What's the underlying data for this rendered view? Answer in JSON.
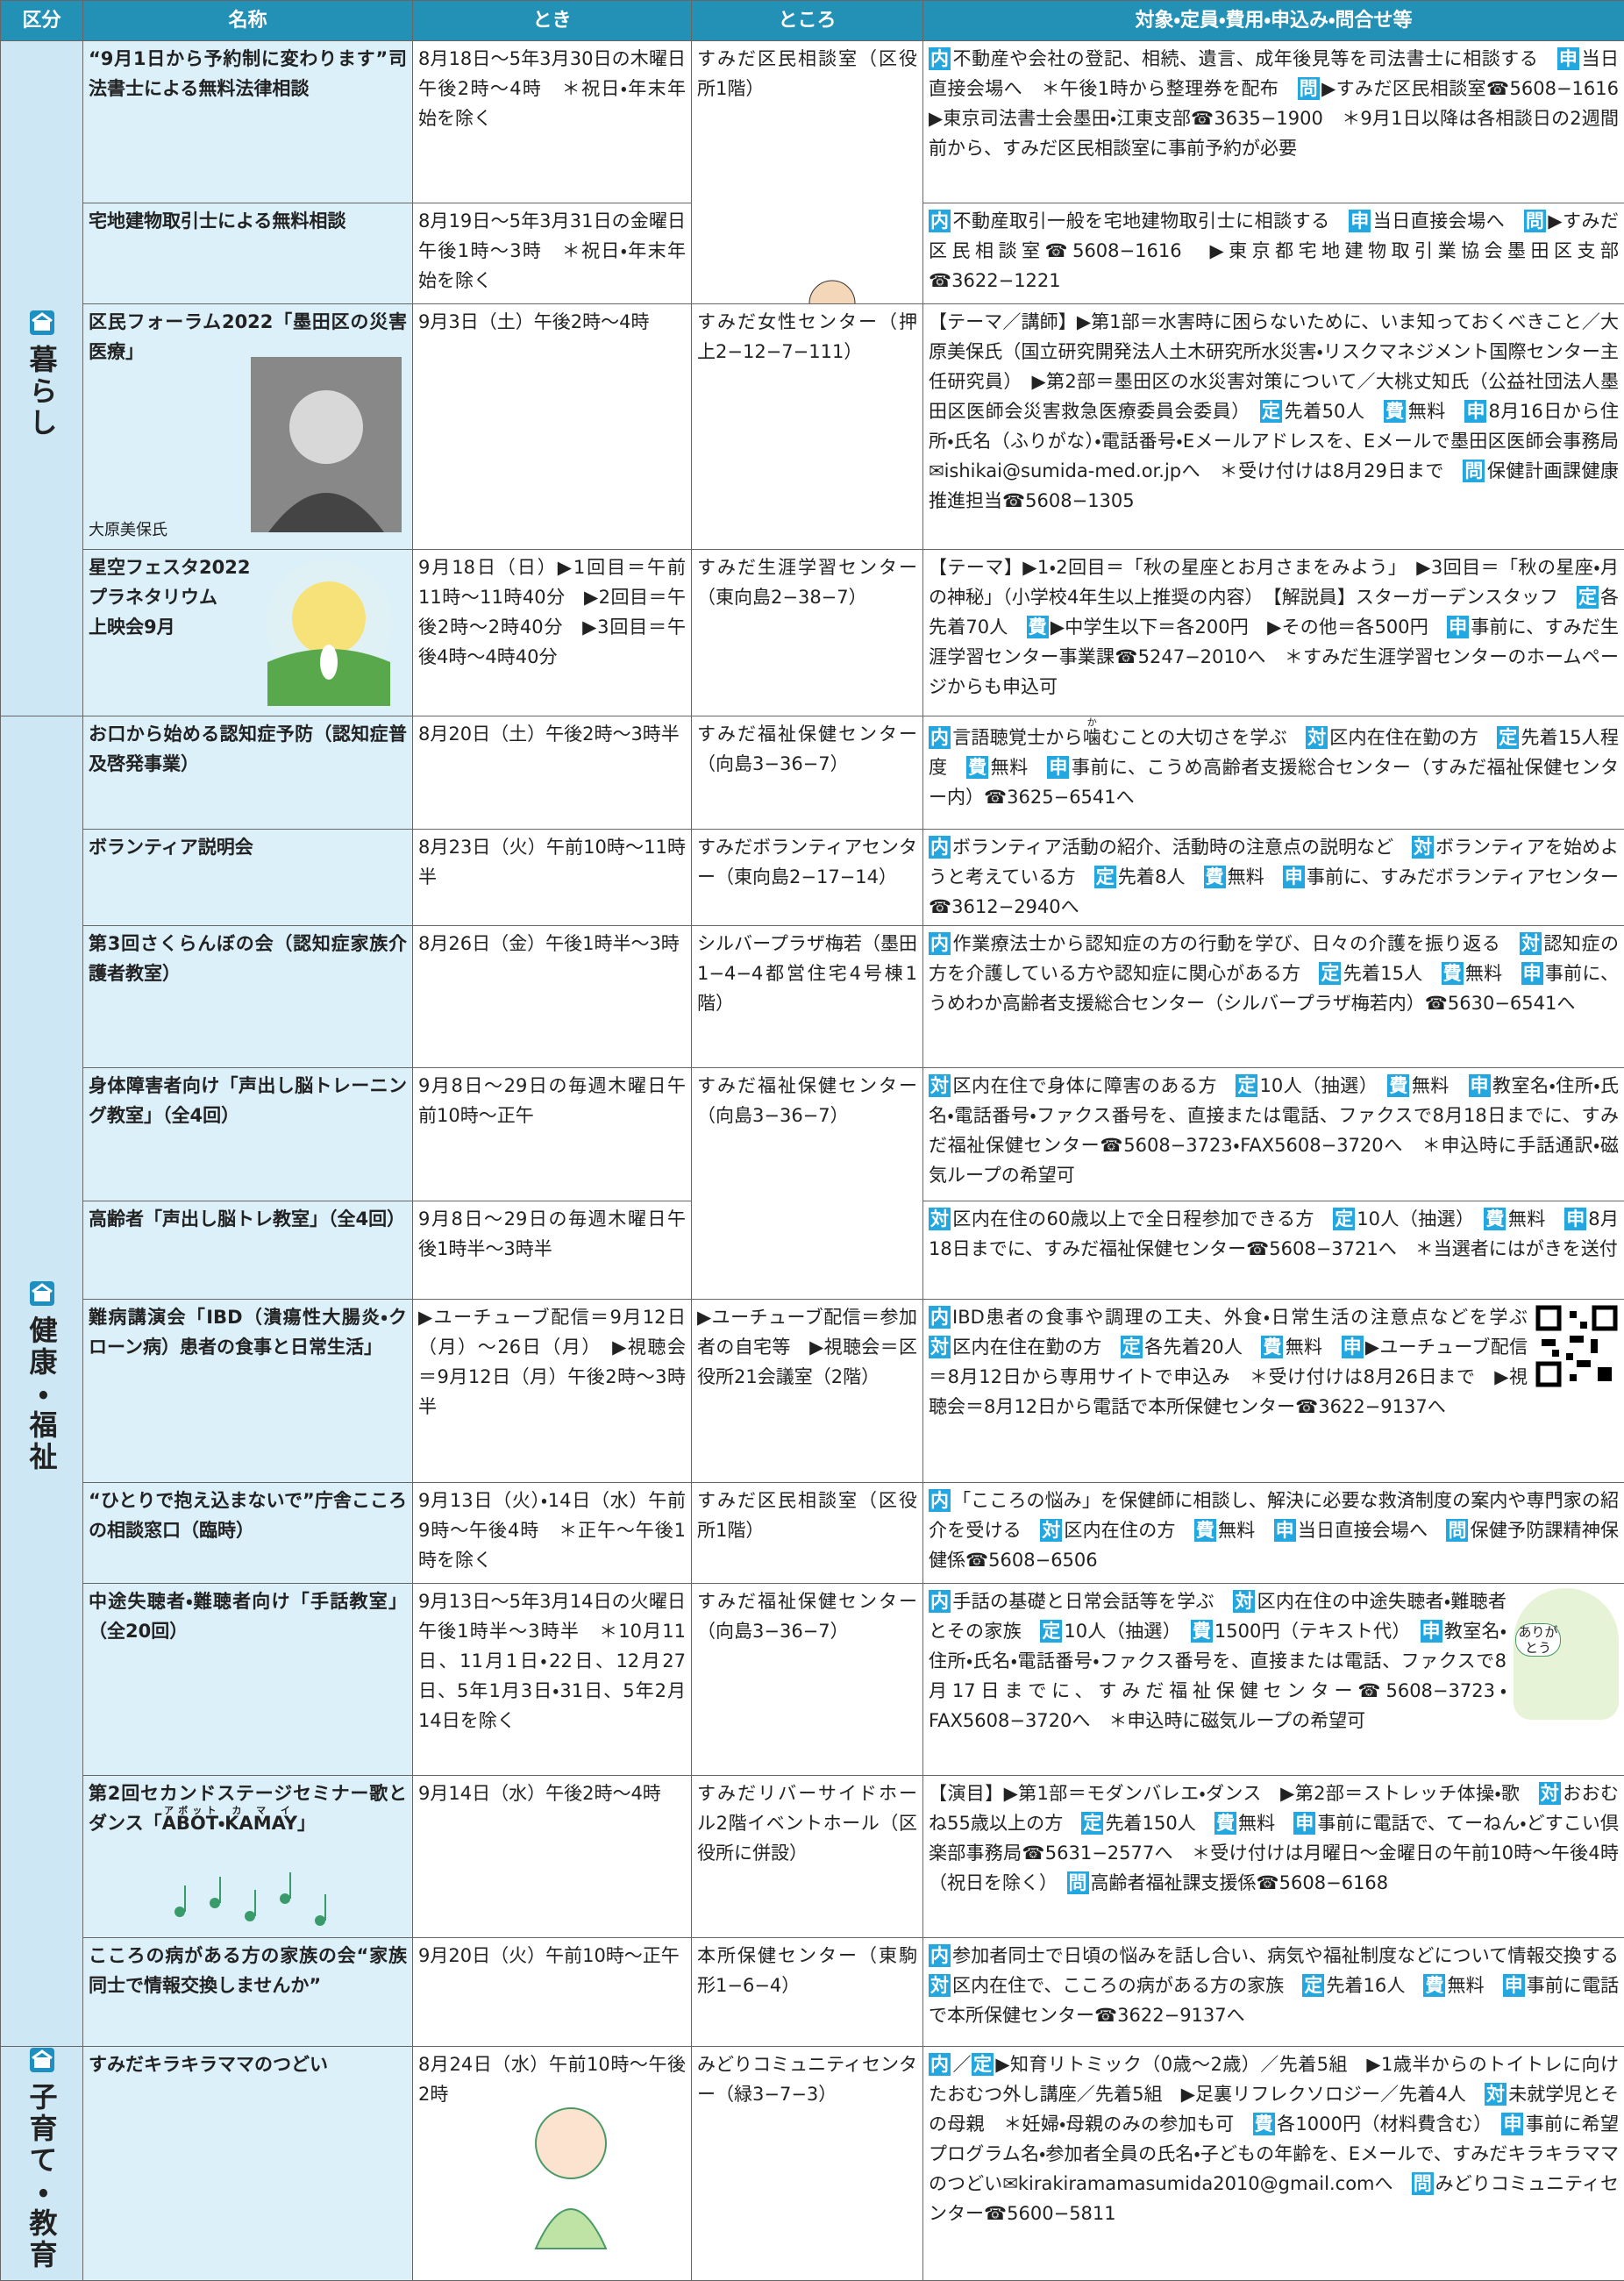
{
  "header": [
    "区分",
    "名称",
    "とき",
    "ところ",
    "対象・定員・費用・申込み・問合せ等"
  ],
  "categories": [
    {
      "label": "暮らし",
      "rows": [
        {
          "name": "“9月1日から予約制に変わります”司法書士による無料法律相談",
          "when": "8月18日〜5年3月30日の木曜日午後2時〜4時　＊祝日・年末年始を除く",
          "where": "すみだ区民相談室（区役所1階）",
          "detail": [
            {
              "b": "内"
            },
            "不動産や会社の登記、相続、遺言、成年後見等を司法書士に相談する　",
            {
              "b": "申"
            },
            "当日直接会場へ　＊午後1時から整理券を配布　",
            {
              "b": "問"
            },
            "▶すみだ区民相談室☎5608−1616　▶東京司法書士会墨田・江東支部☎3635−1900　＊9月1日以降は各相談日の2週間前から、すみだ区民相談室に事前予約が必要"
          ]
        },
        {
          "name": "宅地建物取引士による無料相談",
          "when": "8月19日〜5年3月31日の金曜日午後1時〜3時　＊祝日・年末年始を除く",
          "detail": [
            {
              "b": "内"
            },
            "不動産取引一般を宅地建物取引士に相談する　",
            {
              "b": "申"
            },
            "当日直接会場へ　",
            {
              "b": "問"
            },
            "▶すみだ区民相談室☎5608−1616　▶東京都宅地建物取引業協会墨田区支部☎3622−1221"
          ]
        },
        {
          "name": "区民フォーラム2022「墨田区の災害医療」",
          "caption": "大原美保氏",
          "when": "9月3日（土）午後2時〜4時",
          "where": "すみだ女性センター（押上2−12−7−111）",
          "detail": [
            "【テーマ／講師】▶第1部＝水害時に困らないために、いま知っておくべきこと／大原美保氏（国立研究開発法人土木研究所水災害・リスクマネジメント国際センター主任研究員）　▶第2部＝墨田区の水災害対策について／大桃丈知氏（公益社団法人墨田区医師会災害救急医療委員会委員）　",
            {
              "b": "定"
            },
            "先着50人　",
            {
              "b": "費"
            },
            "無料　",
            {
              "b": "申"
            },
            "8月16日から住所・氏名（ふりがな）・電話番号・Eメールアドレスを、Eメールで墨田区医師会事務局✉ishikai@sumida-med.or.jpへ　＊受け付けは8月29日まで　",
            {
              "b": "問"
            },
            "保健計画課健康推進担当☎5608−1305"
          ]
        },
        {
          "name": "星空フェスタ2022\nプラネタリウム\n上映会9月",
          "when": "9月18日（日）▶1回目＝午前11時〜11時40分　▶2回目＝午後2時〜2時40分　▶3回目＝午後4時〜4時40分",
          "where": "すみだ生涯学習センター（東向島2−38−7）",
          "detail": [
            "【テーマ】▶1・2回目＝「秋の星座とお月さまをみよう」　▶3回目＝「秋の星座・月の神秘」（小学校4年生以上推奨の内容）　【解説員】スターガーデンスタッフ　",
            {
              "b": "定"
            },
            "各先着70人　",
            {
              "b": "費"
            },
            "▶中学生以下＝各200円　▶その他＝各500円　",
            {
              "b": "申"
            },
            "事前に、すみだ生涯学習センター事業課☎5247−2010へ　＊すみだ生涯学習センターのホームページからも申込可"
          ]
        }
      ]
    },
    {
      "label": "健康・福祉",
      "rows": [
        {
          "name": "お口から始める認知症予防（認知症普及啓発事業）",
          "when": "8月20日（土）午後2時〜3時半",
          "where": "すみだ福祉保健センター（向島3−36−7）",
          "detail": [
            {
              "b": "内"
            },
            "言語聴覚士から",
            {
              "t": "噛",
              "r": "か"
            },
            "むことの大切さを学ぶ　",
            {
              "b": "対"
            },
            "区内在住在勤の方　",
            {
              "b": "定"
            },
            "先着15人程度　",
            {
              "b": "費"
            },
            "無料　",
            {
              "b": "申"
            },
            "事前に、こうめ高齢者支援総合センター（すみだ福祉保健センター内）☎3625−6541へ"
          ]
        },
        {
          "name": "ボランティア説明会",
          "when": "8月23日（火）午前10時〜11時半",
          "where": "すみだボランティアセンター（東向島2−17−14）",
          "detail": [
            {
              "b": "内"
            },
            "ボランティア活動の紹介、活動時の注意点の説明など　",
            {
              "b": "対"
            },
            "ボランティアを始めようと考えている方　",
            {
              "b": "定"
            },
            "先着8人　",
            {
              "b": "費"
            },
            "無料　",
            {
              "b": "申"
            },
            "事前に、すみだボランティアセンター☎3612−2940へ"
          ]
        },
        {
          "name": "第3回さくらんぼの会（認知症家族介護者教室）",
          "when": "8月26日（金）午後1時半〜3時",
          "where": "シルバープラザ梅若（墨田1−4−4都営住宅4号棟1階）",
          "detail": [
            {
              "b": "内"
            },
            "作業療法士から認知症の方の行動を学び、日々の介護を振り返る　",
            {
              "b": "対"
            },
            "認知症の方を介護している方や認知症に関心がある方　",
            {
              "b": "定"
            },
            "先着15人　",
            {
              "b": "費"
            },
            "無料　",
            {
              "b": "申"
            },
            "事前に、うめわか高齢者支援総合センター（シルバープラザ梅若内）☎5630−6541へ"
          ]
        },
        {
          "name": "身体障害者向け「声出し脳トレーニング教室」（全4回）",
          "when": "9月8日〜29日の毎週木曜日午前10時〜正午",
          "where": "すみだ福祉保健センター（向島3−36−7）",
          "detail": [
            {
              "b": "対"
            },
            "区内在住で身体に障害のある方　",
            {
              "b": "定"
            },
            "10人（抽選）　",
            {
              "b": "費"
            },
            "無料　",
            {
              "b": "申"
            },
            "教室名・住所・氏名・電話番号・ファクス番号を、直接または電話、ファクスで8月18日までに、すみだ福祉保健センター☎5608−3723・FAX5608−3720へ　＊申込時に手話通訳・磁気ループの希望可"
          ]
        },
        {
          "name": "高齢者「声出し脳トレ教室」（全4回）",
          "when": "9月8日〜29日の毎週木曜日午後1時半〜3時半",
          "detail": [
            {
              "b": "対"
            },
            "区内在住の60歳以上で全日程参加できる方　",
            {
              "b": "定"
            },
            "10人（抽選）　",
            {
              "b": "費"
            },
            "無料　",
            {
              "b": "申"
            },
            "8月18日までに、すみだ福祉保健センター☎5608−3721へ　＊当選者にはがきを送付"
          ]
        },
        {
          "name": "難病講演会「IBD（潰瘍性大腸炎・クローン病）患者の食事と日常生活」",
          "when": "▶ユーチューブ配信＝9月12日（月）〜26日（月）　▶視聴会＝9月12日（月）午後2時〜3時半",
          "where": "▶ユーチューブ配信＝参加者の自宅等　▶視聴会＝区役所21会議室（2階）",
          "detail": [
            {
              "b": "内"
            },
            "IBD患者の食事や調理の工夫、外食・日常生活の注意点などを学ぶ　",
            {
              "b": "対"
            },
            "区内在住在勤の方　",
            {
              "b": "定"
            },
            "各先着20人　",
            {
              "b": "費"
            },
            "無料　",
            {
              "b": "申"
            },
            "▶ユーチューブ配信＝8月12日から専用サイトで申込み　＊受け付けは8月26日まで　▶視聴会＝8月12日から電話で本所保健センター☎3622−9137へ"
          ]
        },
        {
          "name": "“ひとりで抱え込まないで”庁舎こころの相談窓口（臨時）",
          "when": "9月13日（火）・14日（水）午前9時〜午後4時　＊正午〜午後1時を除く",
          "where": "すみだ区民相談室（区役所1階）",
          "detail": [
            {
              "b": "内"
            },
            "「こころの悩み」を保健師に相談し、解決に必要な救済制度の案内や専門家の紹介を受ける　",
            {
              "b": "対"
            },
            "区内在住の方　",
            {
              "b": "費"
            },
            "無料　",
            {
              "b": "申"
            },
            "当日直接会場へ　",
            {
              "b": "問"
            },
            "保健予防課精神保健係☎5608−6506"
          ]
        },
        {
          "name": "中途失聴者・難聴者向け「手話教室」（全20回）",
          "illustration_text": "ありがとう",
          "when": "9月13日〜5年3月14日の火曜日午後1時半〜3時半　＊10月11日、11月1日・22日、12月27日、5年1月3日・31日、5年2月14日を除く",
          "where": "すみだ福祉保健センター（向島3−36−7）",
          "detail": [
            {
              "b": "内"
            },
            "手話の基礎と日常会話等を学ぶ　",
            {
              "b": "対"
            },
            "区内在住の中途失聴者・難聴者とその家族　",
            {
              "b": "定"
            },
            "10人（抽選）　",
            {
              "b": "費"
            },
            "1500円（テキスト代）　",
            {
              "b": "申"
            },
            "教室名・住所・氏名・電話番号・ファクス番号を、直接または電話、ファクスで8月17日までに、すみだ福祉保健センター☎5608−3723・FAX5608−3720へ　＊申込時に磁気ループの希望可"
          ]
        },
        {
          "name": [
            "第2回セカンドステージセミナー",
            "歌とダンス「",
            {
              "t": "ABOT",
              "r": "アボット"
            },
            "・",
            {
              "t": "KAMAY",
              "r": "カマイ"
            },
            "」"
          ],
          "when": "9月14日（水）午後2時〜4時",
          "where": "すみだリバーサイドホール2階イベントホール（区役所に併設）",
          "detail": [
            "【演目】▶第1部＝モダンバレエ・ダンス　▶第2部＝ストレッチ体操・歌　",
            {
              "b": "対"
            },
            "おおむね55歳以上の方　",
            {
              "b": "定"
            },
            "先着150人　",
            {
              "b": "費"
            },
            "無料　",
            {
              "b": "申"
            },
            "事前に電話で、てーねん・どすこい倶楽部事務局☎5631−2577へ　＊受け付けは月曜日〜金曜日の午前10時〜午後4時（祝日を除く）　",
            {
              "b": "問"
            },
            "高齢者福祉課支援係☎5608−6168"
          ]
        },
        {
          "name": "こころの病がある方の家族の会“家族同士で情報交換しませんか”",
          "when": "9月20日（火）午前10時〜正午",
          "where": "本所保健センター（東駒形1−6−4）",
          "detail": [
            {
              "b": "内"
            },
            "参加者同士で日頃の悩みを話し合い、病気や福祉制度などについて情報交換する　",
            {
              "b": "対"
            },
            "区内在住で、こころの病がある方の家族　",
            {
              "b": "定"
            },
            "先着16人　",
            {
              "b": "費"
            },
            "無料　",
            {
              "b": "申"
            },
            "事前に電話で本所保健センター☎3622−9137へ"
          ]
        }
      ]
    },
    {
      "label": "子育て・教育",
      "rows": [
        {
          "name": "すみだキラキラママのつどい",
          "when": "8月24日（水）午前10時〜午後2時",
          "where": "みどりコミュニティセンター（緑3−7−3）",
          "detail": [
            {
              "b": "内"
            },
            "／",
            {
              "b": "定"
            },
            "▶知育リトミック（0歳〜2歳）／先着5組　▶1歳半からのトイトレに向けたおむつ外し講座／先着5組　▶足裏リフレクソロジー／先着4人　",
            {
              "b": "対"
            },
            "未就学児とその母親　＊妊婦・母親のみの参加も可　",
            {
              "b": "費"
            },
            "各1000円（材料費含む）　",
            {
              "b": "申"
            },
            "事前に希望プログラム名・参加者全員の氏名・子どもの年齢を、Eメールで、すみだキラキラママのつどい✉kirakiramamasumida2010@gmail.comへ　",
            {
              "b": "問"
            },
            "みどりコミュニティセンター☎5600−5811"
          ]
        }
      ]
    }
  ]
}
